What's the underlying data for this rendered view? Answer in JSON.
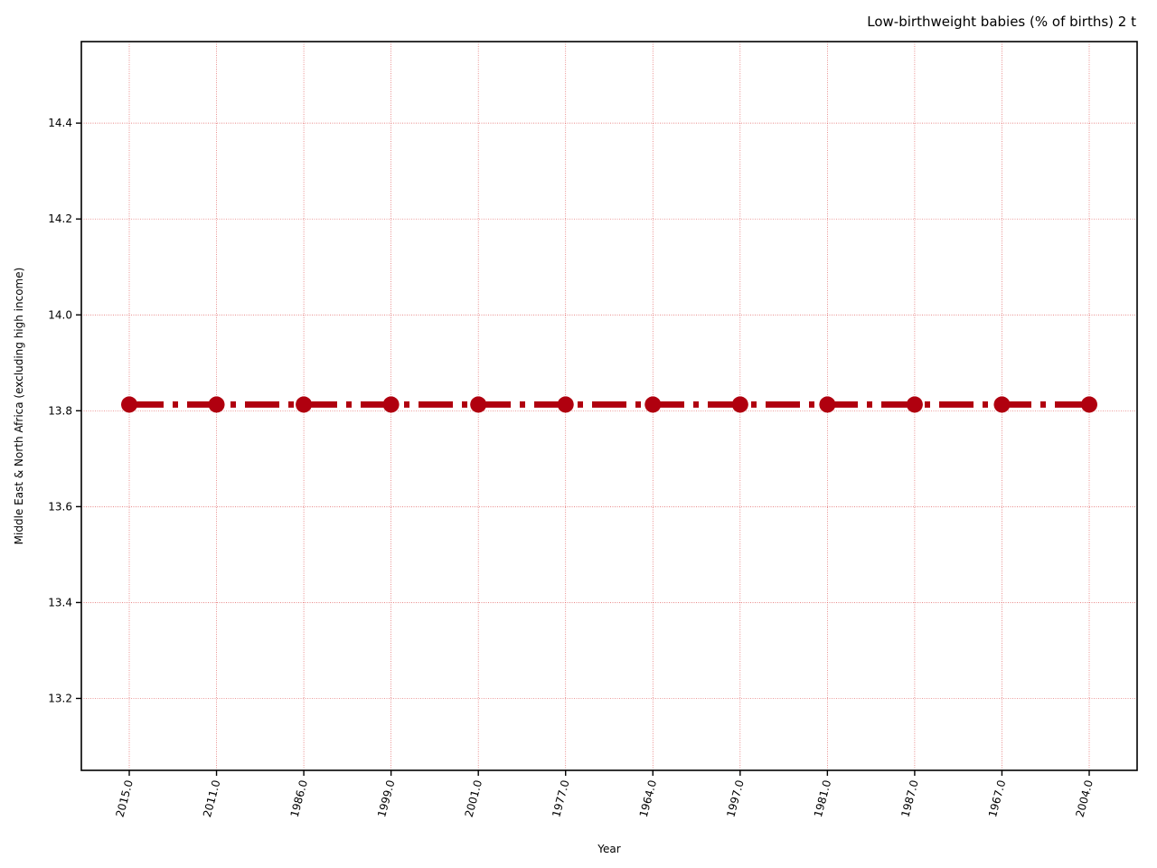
{
  "chart_data": {
    "type": "line",
    "title": "Low-birthweight babies (% of births) 2 t",
    "xlabel": "Year",
    "ylabel": "Middle East & North Africa (excluding high income)",
    "categories": [
      "2015.0",
      "2011.0",
      "1986.0",
      "1999.0",
      "2001.0",
      "1977.0",
      "1964.0",
      "1997.0",
      "1981.0",
      "1987.0",
      "1967.0",
      "2004.0"
    ],
    "series": [
      {
        "values": [
          13.813,
          13.813,
          13.813,
          13.813,
          13.813,
          13.813,
          13.813,
          13.813,
          13.813,
          13.813,
          13.813,
          13.813
        ],
        "color": "#b0000f",
        "line_style": "dash-dot",
        "marker": "circle"
      }
    ],
    "ylim": [
      13.05,
      14.57
    ],
    "yticks": [
      13.2,
      13.4,
      13.6,
      13.8,
      14.0,
      14.2,
      14.4
    ],
    "grid": true,
    "grid_color": "#e06060",
    "legend": "none"
  }
}
